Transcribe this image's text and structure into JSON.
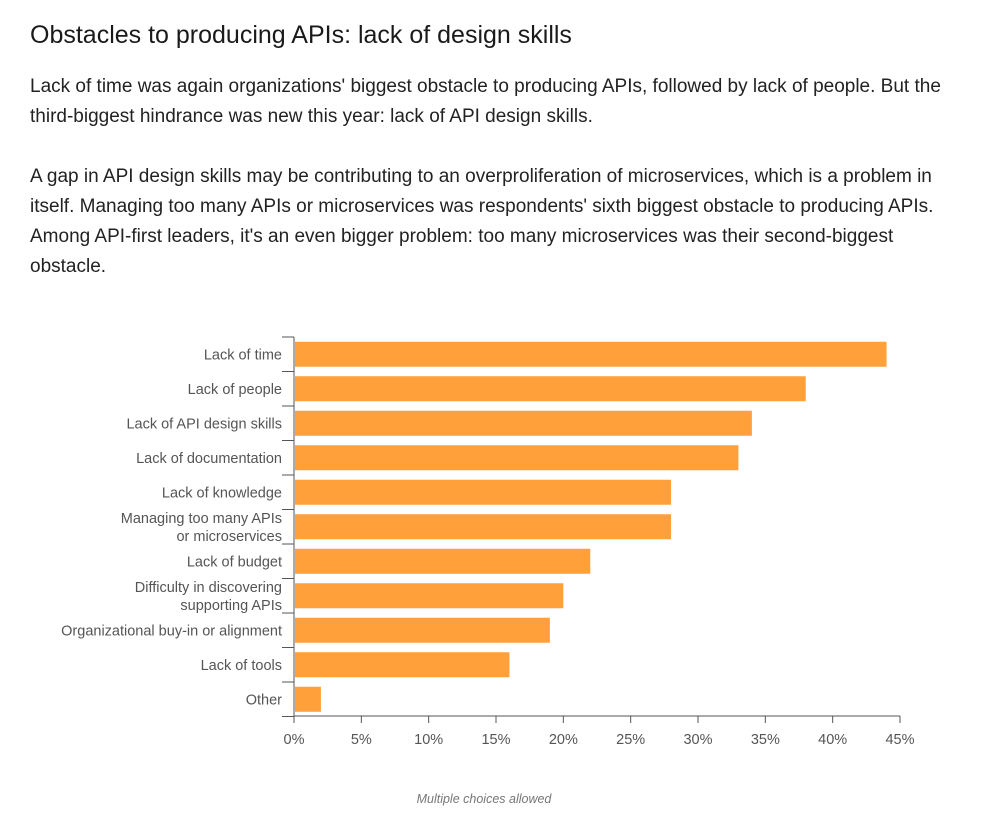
{
  "article": {
    "title": "Obstacles to producing APIs: lack of design skills",
    "paragraphs": [
      "Lack of time was again organizations' biggest obstacle to producing APIs, followed by lack of people. But the third-biggest hindrance was new this year: lack of API design skills.",
      "A gap in API design skills may be contributing to an overproliferation of microservices, which is a problem in itself. Managing too many APIs or microservices was respondents' sixth biggest obstacle to producing APIs. Among API-first leaders, it's an even bigger problem: too many microservices was their second-biggest obstacle."
    ]
  },
  "chart_data": {
    "type": "bar",
    "orientation": "horizontal",
    "categories": [
      [
        "Lack of time"
      ],
      [
        "Lack of people"
      ],
      [
        "Lack of API design skills"
      ],
      [
        "Lack of documentation"
      ],
      [
        "Lack of knowledge"
      ],
      [
        "Managing too many APIs",
        "or microservices"
      ],
      [
        "Lack of budget"
      ],
      [
        "Difficulty in discovering",
        "supporting APIs"
      ],
      [
        "Organizational buy-in or alignment"
      ],
      [
        "Lack of tools"
      ],
      [
        "Other"
      ]
    ],
    "values": [
      44,
      38,
      34,
      33,
      28,
      28,
      22,
      20,
      19,
      16,
      2
    ],
    "xlim": [
      0,
      45
    ],
    "xticks": [
      0,
      5,
      10,
      15,
      20,
      25,
      30,
      35,
      40,
      45
    ],
    "tick_suffix": "%",
    "bar_color": "#ffa03a",
    "footnote": "Multiple choices allowed"
  }
}
